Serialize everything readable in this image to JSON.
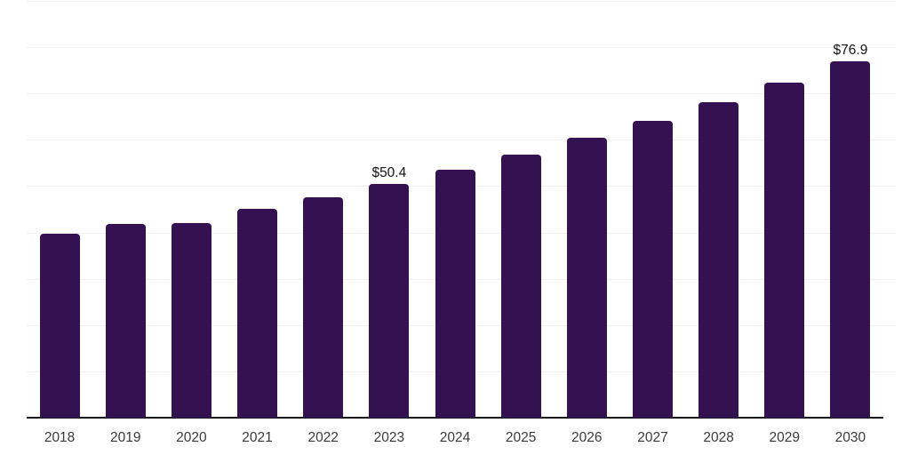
{
  "chart_data": {
    "type": "bar",
    "title": "",
    "xlabel": "",
    "ylabel": "",
    "categories": [
      "2018",
      "2019",
      "2020",
      "2021",
      "2022",
      "2023",
      "2024",
      "2025",
      "2026",
      "2027",
      "2028",
      "2029",
      "2030"
    ],
    "values": [
      39.7,
      41.8,
      42.0,
      45.1,
      47.6,
      50.4,
      53.5,
      56.8,
      60.4,
      64.1,
      68.1,
      72.3,
      76.9
    ],
    "bar_labels": [
      "",
      "",
      "",
      "",
      "",
      "$50.4",
      "",
      "",
      "",
      "",
      "",
      "",
      "$76.9"
    ],
    "value_unit_prefix": "$",
    "ylim": [
      0,
      90
    ],
    "grid_step": 10,
    "grid": true,
    "legend": false,
    "colors": {
      "bar": "#341150",
      "grid": "#f2f2f2",
      "axis": "#1a1a1a",
      "value_label": "#121212",
      "tick_label": "#3a3a3a",
      "background": "#ffffff"
    }
  }
}
